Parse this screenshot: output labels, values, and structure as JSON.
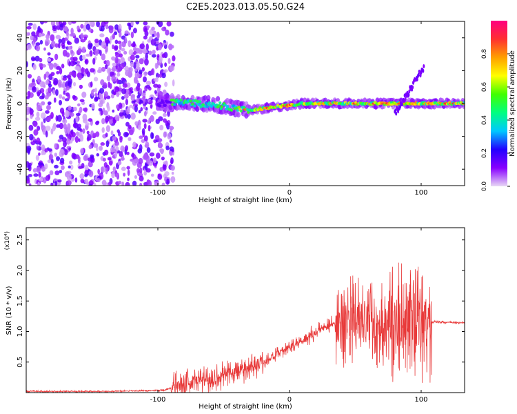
{
  "title": "C2E5.2023.013.05.50.G24",
  "chart_data": [
    {
      "type": "heatmap",
      "xlabel": "Height of straight line (km)",
      "ylabel": "Frequency (Hz)",
      "xlim": [
        -200,
        133
      ],
      "ylim": [
        -50,
        50
      ],
      "xticks": [
        -100,
        0,
        100
      ],
      "yticks": [
        -40,
        -20,
        0,
        20,
        40
      ],
      "colorbar": {
        "label": "Normalized spectral amplitude",
        "range": [
          0.0,
          1.0
        ],
        "ticks": [
          "0.0",
          "0.2",
          "0.4",
          "0.6",
          "0.8"
        ],
        "colors": [
          "#e8d8f5",
          "#8800ff",
          "#2200ff",
          "#00c8ff",
          "#00ff80",
          "#40ff00",
          "#ffff00",
          "#ffa000",
          "#ff3030",
          "#ff0080"
        ]
      },
      "ridge": {
        "x": [
          -100,
          -85,
          -70,
          -55,
          -40,
          -30,
          -20,
          -10,
          0,
          10,
          20,
          40,
          60,
          80,
          95,
          110,
          133
        ],
        "y": [
          0,
          1,
          0,
          -1,
          -3,
          -4,
          -3,
          -2,
          -1,
          0,
          0,
          0,
          0,
          0,
          0,
          0,
          0
        ]
      }
    },
    {
      "type": "line",
      "xlabel": "Height of straight line (km)",
      "ylabel": "SNR (10 * v/v)",
      "y_multiplier": "(x10⁴)",
      "xlim": [
        -200,
        133
      ],
      "ylim": [
        0.0,
        2.7
      ],
      "xticks": [
        -100,
        0,
        100
      ],
      "yticks": [
        0.5,
        1.0,
        1.5,
        2.0,
        2.5
      ],
      "ytick_labels": [
        "0.5",
        "1.0",
        "1.5",
        "2.0",
        "2.5"
      ],
      "series": [
        {
          "color": "#e83a3a",
          "x": [
            -200,
            -170,
            -140,
            -110,
            -95,
            -85,
            -80,
            -70,
            -60,
            -50,
            -40,
            -30,
            -20,
            -10,
            0,
            10,
            20,
            30,
            40,
            50,
            60,
            70,
            80,
            90,
            100,
            105,
            110,
            120,
            133
          ],
          "y": [
            0.02,
            0.02,
            0.02,
            0.03,
            0.04,
            0.12,
            0.15,
            0.2,
            0.22,
            0.28,
            0.35,
            0.42,
            0.5,
            0.62,
            0.75,
            0.85,
            1.0,
            1.1,
            1.15,
            1.18,
            1.15,
            1.12,
            1.15,
            1.1,
            1.15,
            1.13,
            1.16,
            1.15,
            1.14
          ]
        }
      ],
      "noise_amplitude": [
        {
          "from": -200,
          "to": -90,
          "amp": 0.015
        },
        {
          "from": -90,
          "to": -20,
          "amp": 0.25
        },
        {
          "from": -20,
          "to": 10,
          "amp": 0.12
        },
        {
          "from": 10,
          "to": 35,
          "amp": 0.15
        },
        {
          "from": 35,
          "to": 75,
          "amp": 0.75
        },
        {
          "from": 75,
          "to": 108,
          "amp": 1.0
        },
        {
          "from": 108,
          "to": 133,
          "amp": 0.02
        }
      ]
    }
  ]
}
